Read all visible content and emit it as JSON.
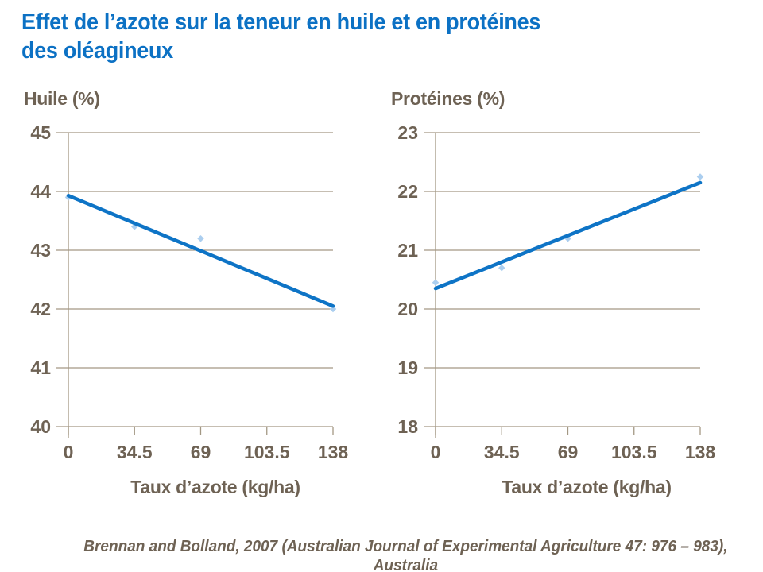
{
  "slide": {
    "title_line1": "Effet de l’azote sur la teneur en huile et en protéines",
    "title_line2": "des oléagineux",
    "citation": "Brennan and Bolland, 2007 (Australian Journal of Experimental Agriculture 47: 976 – 983), Australia"
  },
  "colors": {
    "title_blue": "#0c71c4",
    "trendline_blue": "#0e74c6",
    "marker_light_blue": "#abceef",
    "axis_text_brown": "#6e6254",
    "gridline_taupe": "#a39884"
  },
  "chart_data": [
    {
      "type": "scatter",
      "title": "Huile (%)",
      "xlabel": "Taux d’azote (kg/ha)",
      "ylabel": "",
      "xlim": [
        0,
        138
      ],
      "ylim": [
        40,
        45
      ],
      "x_ticks": [
        0,
        34.5,
        69,
        103.5,
        138
      ],
      "y_ticks": [
        45,
        44,
        43,
        42,
        41,
        40
      ],
      "grid": true,
      "legend": "none",
      "marker_shape": "diamond",
      "points": [
        {
          "x": 0,
          "y": 43.9
        },
        {
          "x": 34.5,
          "y": 43.4
        },
        {
          "x": 69,
          "y": 43.2
        },
        {
          "x": 138,
          "y": 42.0
        }
      ],
      "trendline": {
        "x1": 0,
        "y1": 43.93,
        "x2": 138,
        "y2": 42.05
      }
    },
    {
      "type": "scatter",
      "title": "Protéines (%)",
      "xlabel": "Taux d’azote (kg/ha)",
      "ylabel": "",
      "xlim": [
        0,
        138
      ],
      "ylim": [
        18,
        23
      ],
      "x_ticks": [
        0,
        34.5,
        69,
        103.5,
        138
      ],
      "y_ticks": [
        23,
        22,
        21,
        20,
        19,
        18
      ],
      "grid": true,
      "legend": "none",
      "marker_shape": "diamond",
      "points": [
        {
          "x": 0,
          "y": 20.45
        },
        {
          "x": 34.5,
          "y": 20.7
        },
        {
          "x": 69,
          "y": 21.2
        },
        {
          "x": 138,
          "y": 22.25
        }
      ],
      "trendline": {
        "x1": 0,
        "y1": 20.35,
        "x2": 138,
        "y2": 22.15
      }
    }
  ]
}
